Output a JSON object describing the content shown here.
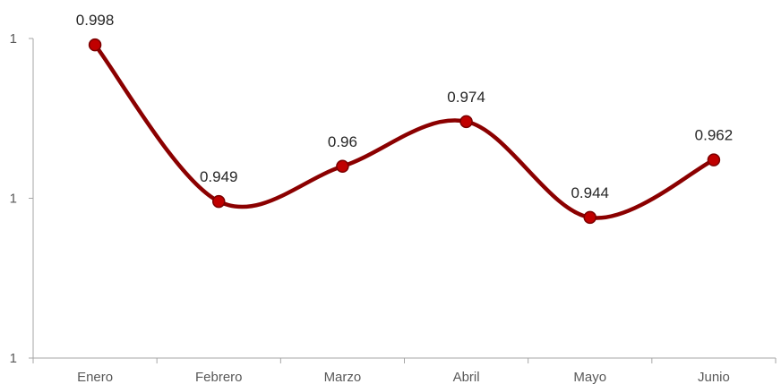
{
  "chart_data": {
    "type": "line",
    "title": "",
    "xlabel": "",
    "ylabel": "",
    "categories": [
      "Enero",
      "Febrero",
      "Marzo",
      "Abril",
      "Mayo",
      "Junio"
    ],
    "series": [
      {
        "values": [
          0.998,
          0.949,
          0.96,
          0.974,
          0.944,
          0.962
        ],
        "data_labels": [
          "0.998",
          "0.949",
          "0.96",
          "0.974",
          "0.944",
          "0.962"
        ]
      }
    ],
    "ylim": [
      0.9,
      1.0
    ],
    "y_ticks": [
      {
        "value": 1.0,
        "label": "1"
      },
      {
        "value": 0.95,
        "label": "1"
      },
      {
        "value": 0.9,
        "label": "1"
      }
    ],
    "smooth": true,
    "grid": false,
    "legend": "none",
    "colors": {
      "line": "#8b0000",
      "marker_fill": "#c00000",
      "marker_stroke": "#7a0000",
      "axis": "#a6a6a6",
      "tick_text": "#595959",
      "label_text": "#262626"
    }
  }
}
